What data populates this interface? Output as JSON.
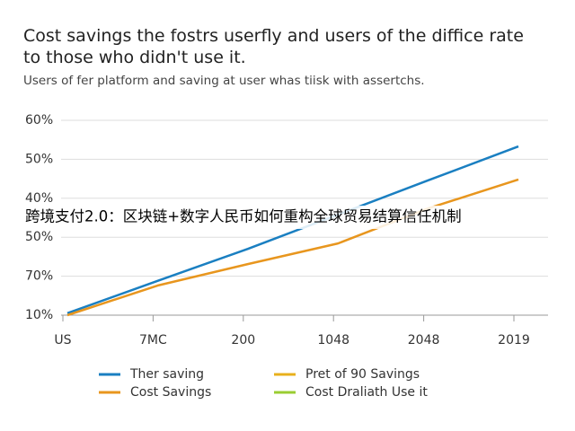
{
  "chart_data": {
    "type": "line",
    "title": "Cost savings the fostrs userfly and users of the diffice rate to those who didn't use it.",
    "subtitle": "Users of fer platform and saving at user whas tiisk with assertchs.",
    "overlay_text": "跨境支付2.0：区块链+数字人民币如何重构全球贸易结算信任机制",
    "categories": [
      "US",
      "7MC",
      "200",
      "1048",
      "2048",
      "2019"
    ],
    "ylim": [
      0,
      5
    ],
    "yticks": [
      {
        "value": 0,
        "label": "10%"
      },
      {
        "value": 1,
        "label": "70%"
      },
      {
        "value": 2,
        "label": "50%"
      },
      {
        "value": 3,
        "label": "40%"
      },
      {
        "value": 4,
        "label": "50%"
      },
      {
        "value": 5,
        "label": "60%"
      }
    ],
    "grid": true,
    "series": [
      {
        "name": "Ther saving",
        "color": "#1a7fc1",
        "values": [
          0.05,
          0.88,
          1.7,
          2.58,
          3.46,
          4.33
        ]
      },
      {
        "name": "Pret of 90 Savings",
        "color": "#e8b01c",
        "values": [
          null,
          null,
          null,
          null,
          null,
          null
        ]
      },
      {
        "name": "Cost Savings",
        "color": "#e8961e",
        "values": [
          0,
          0.76,
          1.31,
          1.84,
          2.74,
          3.48
        ]
      },
      {
        "name": "Cost Draliath Use it",
        "color": "#9acd32",
        "values": [
          null,
          null,
          null,
          null,
          null,
          null
        ]
      }
    ]
  }
}
